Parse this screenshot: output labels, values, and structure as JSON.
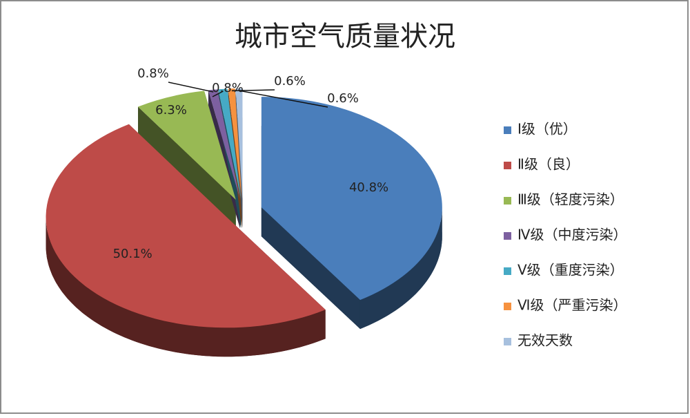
{
  "chart_data": {
    "type": "pie3d",
    "title": "城市空气质量状况",
    "categories": [
      "Ⅰ级（优）",
      "Ⅱ级（良）",
      "Ⅲ级（轻度污染）",
      "Ⅳ级（中度污染）",
      "Ⅴ级（重度污染）",
      "Ⅵ级（严重污染）",
      "无效天数"
    ],
    "values": [
      40.8,
      50.1,
      6.3,
      0.8,
      0.8,
      0.6,
      0.6
    ],
    "value_labels": [
      "40.8%",
      "50.1%",
      "6.3%",
      "0.8%",
      "0.8%",
      "0.6%",
      "0.6%"
    ],
    "colors": [
      "#4a7ebb",
      "#be4b48",
      "#98b954",
      "#7d60a0",
      "#46aac5",
      "#f69240",
      "#a7c0de"
    ],
    "legend": "right"
  }
}
